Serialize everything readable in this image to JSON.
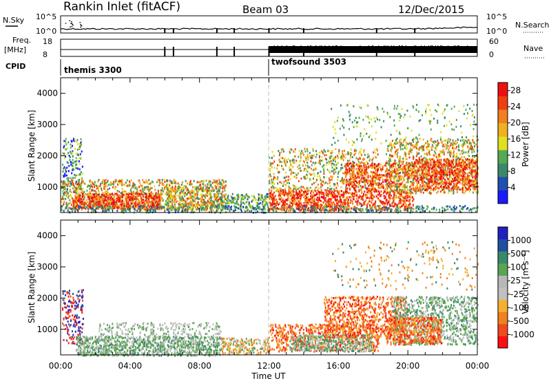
{
  "header": {
    "station": "Rankin Inlet (fitACF)",
    "beam": "Beam 03",
    "date": "12/Dec/2015"
  },
  "status_panel": {
    "nsky_label": "N.Sky",
    "nsky_ticks": [
      "10^5",
      "10^0"
    ],
    "nsearch_label": "N.Search",
    "nsearch_ticks": [
      "10^5",
      "10^0"
    ],
    "freq_label_1": "Freq.",
    "freq_label_2": "[MHz]",
    "freq_ticks": [
      "18",
      "8"
    ],
    "nave_label": "Nave",
    "nave_ticks": [
      "60",
      "0"
    ],
    "cpid_label": "CPID",
    "cpid_modes": [
      {
        "name": "themis 3300",
        "start_hour": 0
      },
      {
        "name": "twofsound 3503",
        "start_hour": 12
      }
    ]
  },
  "colors": {
    "power_scale": [
      "#1a1aff",
      "#1f4fb0",
      "#3a8a6a",
      "#55aa55",
      "#e0e020",
      "#f0b020",
      "#f08020",
      "#f04010",
      "#ee1010"
    ],
    "velocity_scale": [
      "#ff1010",
      "#f04a20",
      "#f08020",
      "#f5b030",
      "#c0c0c0",
      "#b8b8b8",
      "#5aa550",
      "#3a8a6a",
      "#2050a0",
      "#2020c0"
    ],
    "gray_band": "#c0c0c0"
  },
  "chart_data": [
    {
      "type": "heatmap",
      "title": "Power",
      "xlabel": "Time UT",
      "ylabel": "Slant Range [km]",
      "x_range_hours": [
        0,
        24
      ],
      "x_tick_labels": [
        "00:00",
        "04:00",
        "08:00",
        "12:00",
        "16:00",
        "20:00",
        "00:00"
      ],
      "ylim": [
        180,
        4500
      ],
      "y_ticks": [
        1000,
        2000,
        3000,
        4000
      ],
      "colorbar": {
        "label": "Power [dB]",
        "ticks": [
          "4",
          "8",
          "12",
          "16",
          "20",
          "24",
          "28"
        ],
        "range": [
          0,
          30
        ]
      },
      "grid": false
    },
    {
      "type": "heatmap",
      "title": "Velocity",
      "xlabel": "Time UT",
      "ylabel": "Slant Range [km]",
      "x_range_hours": [
        0,
        24
      ],
      "x_tick_labels": [
        "00:00",
        "04:00",
        "08:00",
        "12:00",
        "16:00",
        "20:00",
        "00:00"
      ],
      "ylim": [
        180,
        4500
      ],
      "y_ticks": [
        1000,
        2000,
        3000,
        4000
      ],
      "colorbar": {
        "label": "Velocity [m s⁻¹]",
        "ticks": [
          "1000",
          "500",
          "100",
          "25",
          "-25",
          "-100",
          "-500",
          "-1000"
        ]
      },
      "grid": false
    }
  ]
}
